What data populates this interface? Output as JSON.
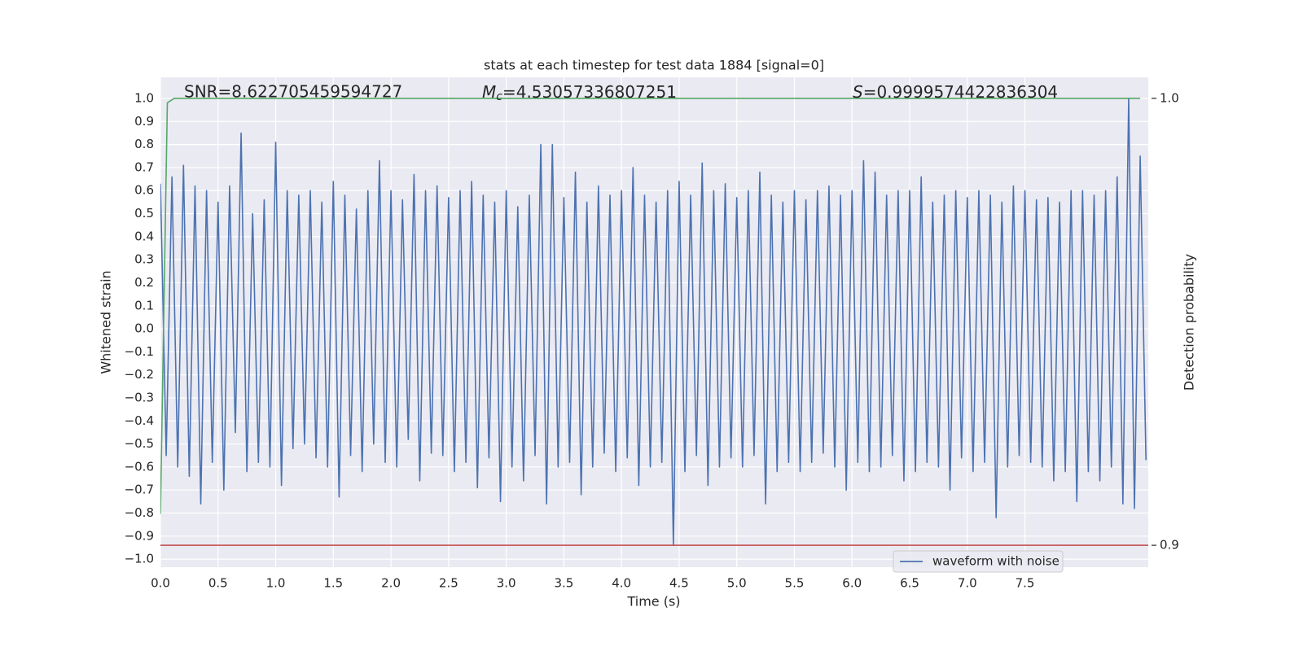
{
  "chart_data": {
    "type": "line",
    "title": "stats at each timestep for test data 1884 [signal=0]",
    "xlabel": "Time (s)",
    "ylabel": "Whitened strain",
    "y2label": "Detection probability",
    "annotations": [
      {
        "text": "SNR=8.622705459594727"
      },
      {
        "symbol": "M",
        "subscript": "c",
        "text": "=4.53057336807251"
      },
      {
        "symbol": "S",
        "text": "=0.9999574422836304"
      }
    ],
    "xlim": [
      0,
      8.57
    ],
    "ylim": [
      -1.035,
      1.092
    ],
    "y2lim": [
      0.8951,
      1.0047
    ],
    "xticks": [
      {
        "value": 0,
        "label": "0.0"
      },
      0.5,
      {
        "value": 1,
        "label": "1.0"
      },
      1.5,
      {
        "value": 2,
        "label": "2.0"
      },
      2.5,
      {
        "value": 3,
        "label": "3.0"
      },
      3.5,
      {
        "value": 4,
        "label": "4.0"
      },
      4.5,
      {
        "value": 5,
        "label": "5.0"
      },
      5.5,
      {
        "value": 6,
        "label": "6.0"
      },
      6.5,
      {
        "value": 7,
        "label": "7.0"
      },
      7.5
    ],
    "yticks": [
      {
        "value": 1,
        "label": "1.0"
      },
      0.9,
      0.8,
      0.7,
      0.6,
      0.5,
      0.4,
      0.3,
      0.2,
      0.1,
      {
        "value": 0,
        "label": "0.0"
      },
      {
        "value": -0.1,
        "label": "−0.1"
      },
      {
        "value": -0.2,
        "label": "−0.2"
      },
      {
        "value": -0.3,
        "label": "−0.3"
      },
      {
        "value": -0.4,
        "label": "−0.4"
      },
      {
        "value": -0.5,
        "label": "−0.5"
      },
      {
        "value": -0.6,
        "label": "−0.6"
      },
      {
        "value": -0.7,
        "label": "−0.7"
      },
      {
        "value": -0.8,
        "label": "−0.8"
      },
      {
        "value": -0.9,
        "label": "−0.9"
      },
      {
        "value": -1,
        "label": "−1.0"
      }
    ],
    "y2ticks": [
      {
        "value": 1,
        "label": "1.0"
      },
      0.9
    ],
    "grid": true,
    "legend": "lower right",
    "series": [
      {
        "name": "waveform with noise",
        "color": "#4c72b0",
        "x": [
          0,
          0.05,
          0.1,
          0.15,
          0.2,
          0.25,
          0.3,
          0.35,
          0.4,
          0.45,
          0.5,
          0.55,
          0.6,
          0.65,
          0.7,
          0.75,
          0.8,
          0.85,
          0.9,
          0.95,
          1,
          1.05,
          1.1,
          1.15,
          1.2,
          1.25,
          1.3,
          1.35,
          1.4,
          1.45,
          1.5,
          1.55,
          1.6,
          1.65,
          1.7,
          1.75,
          1.8,
          1.85,
          1.9,
          1.95,
          2,
          2.05,
          2.1,
          2.15,
          2.2,
          2.25,
          2.3,
          2.35,
          2.4,
          2.45,
          2.5,
          2.55,
          2.6,
          2.65,
          2.7,
          2.75,
          2.8,
          2.85,
          2.9,
          2.95,
          3,
          3.05,
          3.1,
          3.15,
          3.2,
          3.25,
          3.3,
          3.35,
          3.4,
          3.45,
          3.5,
          3.55,
          3.6,
          3.65,
          3.7,
          3.75,
          3.8,
          3.85,
          3.9,
          3.95,
          4,
          4.05,
          4.1,
          4.15,
          4.2,
          4.25,
          4.3,
          4.35,
          4.4,
          4.45,
          4.5,
          4.55,
          4.6,
          4.65,
          4.7,
          4.75,
          4.8,
          4.85,
          4.9,
          4.95,
          5,
          5.05,
          5.1,
          5.15,
          5.2,
          5.25,
          5.3,
          5.35,
          5.4,
          5.45,
          5.5,
          5.55,
          5.6,
          5.65,
          5.7,
          5.75,
          5.8,
          5.85,
          5.9,
          5.95,
          6,
          6.05,
          6.1,
          6.15,
          6.2,
          6.25,
          6.3,
          6.35,
          6.4,
          6.45,
          6.5,
          6.55,
          6.6,
          6.65,
          6.7,
          6.75,
          6.8,
          6.85,
          6.9,
          6.95,
          7,
          7.05,
          7.1,
          7.15,
          7.2,
          7.25,
          7.3,
          7.35,
          7.4,
          7.45,
          7.5,
          7.55,
          7.6,
          7.65,
          7.7,
          7.75,
          7.8,
          7.85,
          7.9,
          7.95,
          8,
          8.05,
          8.1,
          8.15,
          8.2,
          8.25,
          8.3,
          8.35,
          8.4,
          8.45,
          8.5,
          8.55
        ],
        "values": [
          0.63,
          -0.55,
          0.66,
          -0.6,
          0.71,
          -0.64,
          0.62,
          -0.76,
          0.6,
          -0.58,
          0.55,
          -0.7,
          0.62,
          -0.45,
          0.85,
          -0.62,
          0.5,
          -0.58,
          0.56,
          -0.6,
          0.81,
          -0.68,
          0.6,
          -0.52,
          0.58,
          -0.5,
          0.6,
          -0.56,
          0.55,
          -0.6,
          0.64,
          -0.73,
          0.58,
          -0.55,
          0.52,
          -0.62,
          0.6,
          -0.5,
          0.73,
          -0.58,
          0.6,
          -0.6,
          0.56,
          -0.48,
          0.67,
          -0.66,
          0.6,
          -0.54,
          0.62,
          -0.55,
          0.57,
          -0.62,
          0.6,
          -0.58,
          0.64,
          -0.69,
          0.58,
          -0.56,
          0.55,
          -0.75,
          0.6,
          -0.6,
          0.53,
          -0.66,
          0.58,
          -0.55,
          0.8,
          -0.76,
          0.8,
          -0.6,
          0.57,
          -0.58,
          0.68,
          -0.72,
          0.55,
          -0.6,
          0.62,
          -0.54,
          0.58,
          -0.62,
          0.6,
          -0.56,
          0.7,
          -0.68,
          0.58,
          -0.6,
          0.55,
          -0.58,
          0.6,
          -0.94,
          0.64,
          -0.62,
          0.58,
          -0.55,
          0.72,
          -0.68,
          0.6,
          -0.6,
          0.63,
          -0.56,
          0.57,
          -0.6,
          0.6,
          -0.55,
          0.68,
          -0.76,
          0.58,
          -0.62,
          0.55,
          -0.58,
          0.6,
          -0.62,
          0.56,
          -0.58,
          0.6,
          -0.54,
          0.62,
          -0.6,
          0.58,
          -0.7,
          0.6,
          -0.58,
          0.73,
          -0.62,
          0.68,
          -0.6,
          0.58,
          -0.55,
          0.6,
          -0.66,
          0.6,
          -0.62,
          0.66,
          -0.58,
          0.55,
          -0.6,
          0.58,
          -0.7,
          0.6,
          -0.56,
          0.57,
          -0.62,
          0.6,
          -0.58,
          0.58,
          -0.82,
          0.55,
          -0.6,
          0.62,
          -0.55,
          0.6,
          -0.58,
          0.56,
          -0.6,
          0.57,
          -0.66,
          0.55,
          -0.62,
          0.6,
          -0.75,
          0.6,
          -0.62,
          0.58,
          -0.66,
          0.6,
          -0.6,
          0.66,
          -0.76,
          1.0,
          -0.78,
          0.75,
          -0.57
        ]
      },
      {
        "color": "#55a868",
        "axis": "y2",
        "x": [
          0,
          0.06,
          0.12,
          8.5
        ],
        "values": [
          0.907,
          0.999,
          1.0,
          1.0
        ]
      }
    ],
    "hlines": [
      {
        "value": 0.9,
        "axis": "y2",
        "color": "#c44e52"
      }
    ]
  }
}
